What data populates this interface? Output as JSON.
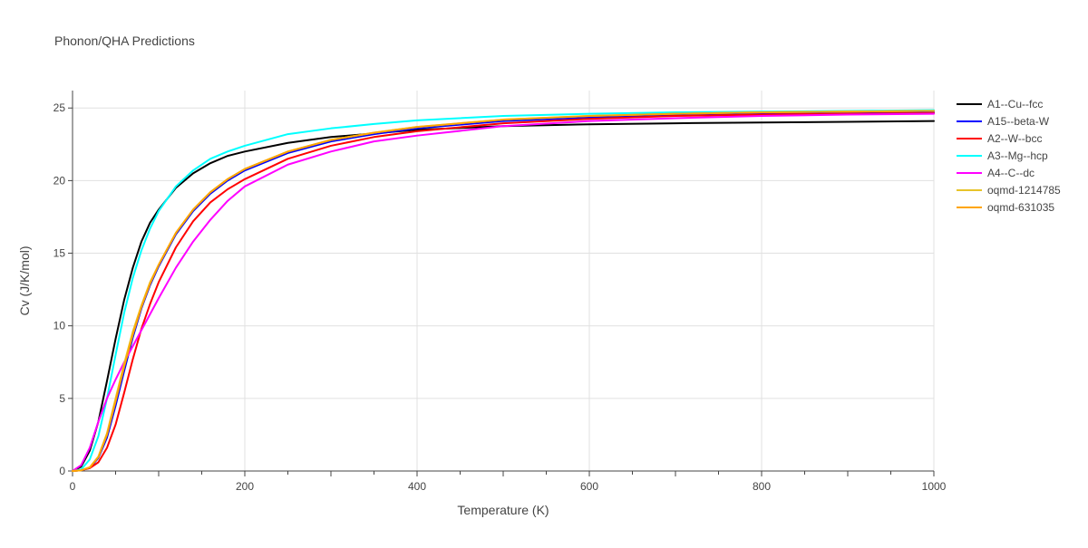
{
  "chart_data": {
    "type": "line",
    "title": "Phonon/QHA Predictions",
    "xlabel": "Temperature (K)",
    "ylabel": "Cv (J/K/mol)",
    "xlim": [
      0,
      1000
    ],
    "ylim": [
      0,
      26.2
    ],
    "xticks": [
      0,
      200,
      400,
      600,
      800,
      1000
    ],
    "yticks": [
      0,
      5,
      10,
      15,
      20,
      25
    ],
    "grid": true,
    "legend_position": "right",
    "series": [
      {
        "name": "A1--Cu--fcc",
        "color": "#000000",
        "x": [
          0,
          10,
          20,
          30,
          40,
          50,
          60,
          70,
          80,
          90,
          100,
          120,
          140,
          160,
          180,
          200,
          250,
          300,
          400,
          500,
          600,
          700,
          800,
          900,
          1000
        ],
        "y": [
          0,
          0.3,
          1.4,
          3.4,
          6.2,
          9.1,
          11.8,
          14.0,
          15.8,
          17.1,
          18.0,
          19.5,
          20.5,
          21.2,
          21.7,
          22.0,
          22.6,
          23.0,
          23.5,
          23.75,
          23.88,
          23.95,
          24.0,
          24.05,
          24.1
        ]
      },
      {
        "name": "A15--beta-W",
        "color": "#0000ff",
        "x": [
          0,
          10,
          20,
          30,
          40,
          50,
          60,
          70,
          80,
          90,
          100,
          120,
          140,
          160,
          180,
          200,
          250,
          300,
          350,
          400,
          500,
          600,
          700,
          800,
          900,
          1000
        ],
        "y": [
          0,
          0.05,
          0.2,
          0.9,
          2.3,
          4.5,
          6.9,
          9.2,
          11.2,
          12.8,
          14.1,
          16.3,
          17.9,
          19.1,
          20.0,
          20.7,
          21.9,
          22.7,
          23.2,
          23.6,
          24.1,
          24.35,
          24.5,
          24.6,
          24.65,
          24.7
        ]
      },
      {
        "name": "A2--W--bcc",
        "color": "#ff0000",
        "x": [
          0,
          10,
          20,
          30,
          40,
          50,
          60,
          70,
          80,
          90,
          100,
          120,
          140,
          160,
          180,
          200,
          250,
          300,
          350,
          400,
          500,
          600,
          700,
          800,
          900,
          1000
        ],
        "y": [
          0,
          0.05,
          0.2,
          0.6,
          1.6,
          3.2,
          5.4,
          7.7,
          9.8,
          11.5,
          13.0,
          15.4,
          17.2,
          18.5,
          19.4,
          20.1,
          21.5,
          22.4,
          23.0,
          23.4,
          23.95,
          24.25,
          24.45,
          24.55,
          24.6,
          24.65
        ]
      },
      {
        "name": "A3--Mg--hcp",
        "color": "#00ffff",
        "x": [
          0,
          10,
          20,
          30,
          40,
          50,
          60,
          70,
          80,
          90,
          100,
          120,
          140,
          160,
          180,
          200,
          250,
          300,
          350,
          400,
          500,
          600,
          700,
          800,
          900,
          1000
        ],
        "y": [
          0,
          0.1,
          0.8,
          2.4,
          5.0,
          8.0,
          10.9,
          13.3,
          15.2,
          16.7,
          17.9,
          19.6,
          20.7,
          21.5,
          22.0,
          22.4,
          23.2,
          23.6,
          23.9,
          24.15,
          24.45,
          24.6,
          24.7,
          24.75,
          24.8,
          24.85
        ]
      },
      {
        "name": "A4--C--dc",
        "color": "#ff00ff",
        "x": [
          0,
          10,
          20,
          30,
          40,
          50,
          60,
          70,
          80,
          90,
          100,
          120,
          140,
          160,
          180,
          200,
          250,
          300,
          350,
          400,
          500,
          600,
          700,
          800,
          900,
          1000
        ],
        "y": [
          0,
          0.4,
          1.6,
          3.4,
          5.0,
          6.3,
          7.5,
          8.6,
          9.7,
          10.8,
          11.9,
          14.0,
          15.8,
          17.3,
          18.6,
          19.6,
          21.1,
          22.0,
          22.7,
          23.1,
          23.75,
          24.1,
          24.3,
          24.45,
          24.55,
          24.6
        ]
      },
      {
        "name": "oqmd-1214785",
        "color": "#e8c42a",
        "x": [
          0,
          10,
          20,
          30,
          40,
          50,
          60,
          70,
          80,
          90,
          100,
          120,
          140,
          160,
          180,
          200,
          250,
          300,
          350,
          400,
          500,
          600,
          700,
          800,
          900,
          1000
        ],
        "y": [
          0,
          0.05,
          0.25,
          1.0,
          2.6,
          5.0,
          7.4,
          9.6,
          11.4,
          13.0,
          14.2,
          16.4,
          18.0,
          19.2,
          20.1,
          20.8,
          22.0,
          22.8,
          23.3,
          23.7,
          24.2,
          24.45,
          24.6,
          24.7,
          24.75,
          24.8
        ]
      },
      {
        "name": "oqmd-631035",
        "color": "#ffa500",
        "x": [
          0,
          10,
          20,
          30,
          40,
          50,
          60,
          70,
          80,
          90,
          100,
          120,
          140,
          160,
          180,
          200,
          250,
          300,
          350,
          400,
          500,
          600,
          700,
          800,
          900,
          1000
        ],
        "y": [
          0,
          0.05,
          0.25,
          0.95,
          2.5,
          4.8,
          7.2,
          9.4,
          11.3,
          12.9,
          14.2,
          16.4,
          18.0,
          19.2,
          20.1,
          20.8,
          22.0,
          22.8,
          23.3,
          23.7,
          24.2,
          24.45,
          24.6,
          24.7,
          24.75,
          24.8
        ]
      }
    ]
  }
}
